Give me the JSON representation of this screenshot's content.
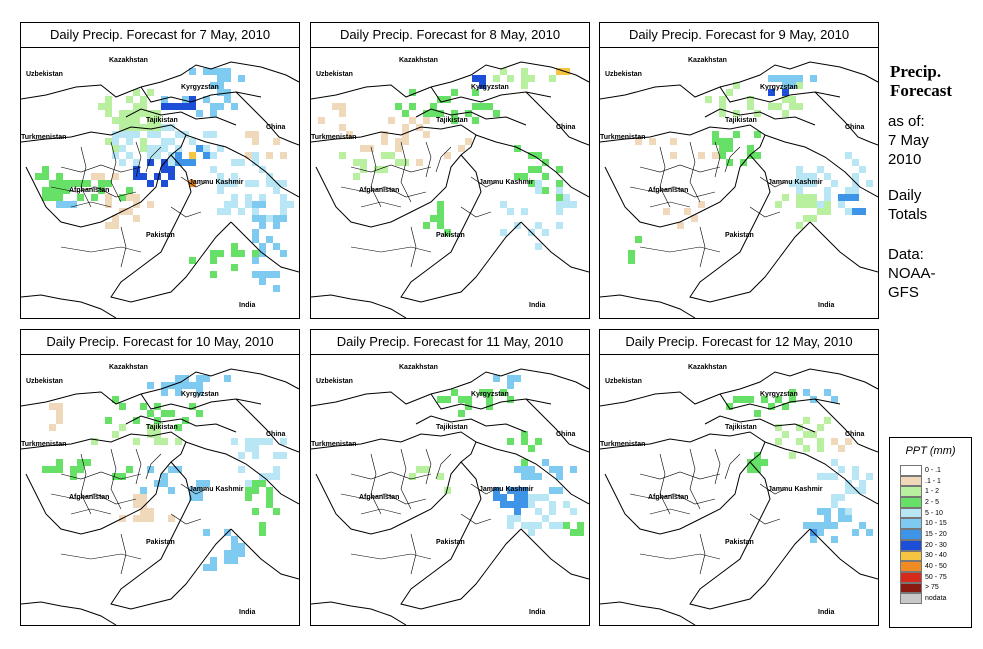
{
  "panels": [
    {
      "title": "Daily Precip. Forecast for  7 May, 2010"
    },
    {
      "title": "Daily Precip. Forecast for  8 May, 2010"
    },
    {
      "title": "Daily Precip. Forecast for  9 May, 2010"
    },
    {
      "title": "Daily Precip. Forecast for  10 May, 2010"
    },
    {
      "title": "Daily Precip. Forecast for  11 May, 2010"
    },
    {
      "title": "Daily Precip. Forecast for  12 May, 2010"
    }
  ],
  "map_labels": {
    "kazakhstan": "Kazakhstan",
    "uzbekistan": "Uzbekistan",
    "kyrgyzstan": "Kyrgyzstan",
    "tajikistan": "Tajikistan",
    "turkmenistan": "Turkmenistan",
    "china": "China",
    "afghanistan": "Afghanistan",
    "jammu_kashmir": "Jammu Kashmir",
    "pakistan": "Pakistan",
    "india": "India"
  },
  "sidebar": {
    "title_line1": "Precip.",
    "title_line2": "Forecast",
    "asof_line1": "as of:",
    "asof_line2": "7 May",
    "asof_line3": "2010",
    "totals_line1": "Daily",
    "totals_line2": "Totals",
    "data_line1": "Data:",
    "data_line2": "NOAA-",
    "data_line3": "GFS"
  },
  "legend": {
    "title": "PPT (mm)",
    "items": [
      {
        "label": "0 - .1",
        "color": "#ffffff"
      },
      {
        "label": ".1 - 1",
        "color": "#f0d9bb"
      },
      {
        "label": "1 - 2",
        "color": "#b9f0a0"
      },
      {
        "label": "2 - 5",
        "color": "#66e066"
      },
      {
        "label": "5 - 10",
        "color": "#b9e6f5"
      },
      {
        "label": "10 - 15",
        "color": "#7fcaf0"
      },
      {
        "label": "15 - 20",
        "color": "#3e94e6"
      },
      {
        "label": "20 - 30",
        "color": "#1d4ed8"
      },
      {
        "label": "30 - 40",
        "color": "#f5c542"
      },
      {
        "label": "40 - 50",
        "color": "#f08a24"
      },
      {
        "label": "50 - 75",
        "color": "#d62b1c"
      },
      {
        "label": "> 75",
        "color": "#8b1a10"
      },
      {
        "label": "nodata",
        "color": "#c8c8c8"
      }
    ]
  }
}
